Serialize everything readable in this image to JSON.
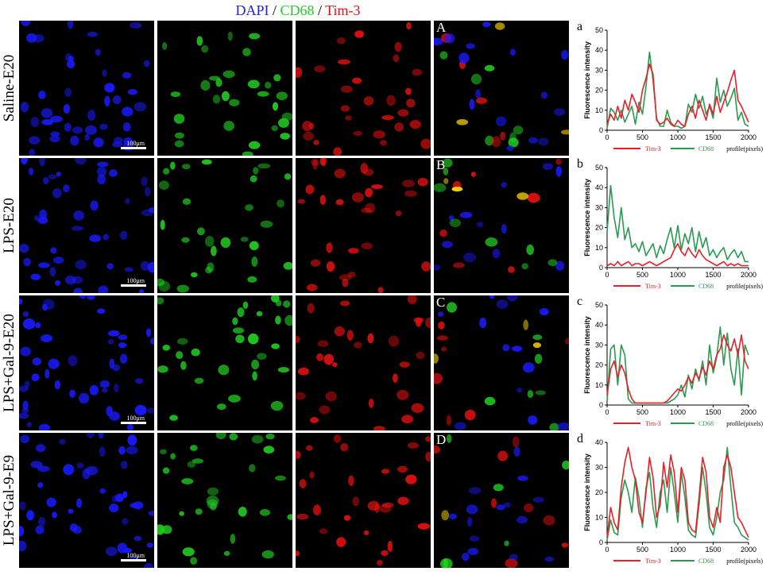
{
  "header": {
    "dapi": "DAPI",
    "sep1": " / ",
    "cd68": "CD68",
    "sep2": " / ",
    "tim3": "Tim-3"
  },
  "colors": {
    "dapi": "#1a1aff",
    "cd68": "#22cc22",
    "tim3": "#e01010",
    "tim3_line": "#e8202a",
    "cd68_line": "#2a9a50"
  },
  "rows": [
    {
      "label": "Saline-E20",
      "panel_letter": "A",
      "scale": "100μm",
      "sub": "a"
    },
    {
      "label": "LPS-E20",
      "panel_letter": "B",
      "scale": "100μm",
      "sub": "b"
    },
    {
      "label": "LPS+Gal-9-E20",
      "panel_letter": "C",
      "scale": "100μm",
      "sub": "c"
    },
    {
      "label": "LPS+Gal-9-E9",
      "panel_letter": "D",
      "scale": "100μm",
      "sub": "d"
    }
  ],
  "chart_data": [
    {
      "type": "line",
      "ylabel": "Fluorescence intensity",
      "xlabel": "profile(pixels)",
      "xlim": [
        0,
        2000
      ],
      "ylim": [
        0,
        50
      ],
      "xticks": [
        "0",
        "500",
        "1000",
        "1500",
        "2000"
      ],
      "yticks": [
        "0",
        "10",
        "20",
        "30",
        "40",
        "50"
      ],
      "series": [
        {
          "name": "Tim-3",
          "x": [
            0,
            50,
            100,
            150,
            200,
            250,
            300,
            350,
            400,
            450,
            500,
            550,
            600,
            650,
            700,
            750,
            800,
            850,
            900,
            950,
            1000,
            1050,
            1100,
            1150,
            1200,
            1250,
            1300,
            1350,
            1400,
            1450,
            1500,
            1550,
            1600,
            1650,
            1700,
            1750,
            1800,
            1850,
            1900,
            1950,
            2000
          ],
          "values": [
            3,
            8,
            5,
            12,
            6,
            15,
            10,
            18,
            14,
            9,
            20,
            26,
            33,
            28,
            5,
            3,
            4,
            6,
            3,
            2,
            5,
            3,
            2,
            8,
            12,
            6,
            15,
            10,
            5,
            13,
            8,
            17,
            9,
            14,
            19,
            25,
            30,
            15,
            12,
            8,
            4
          ]
        },
        {
          "name": "CD68",
          "x": [
            0,
            50,
            100,
            150,
            200,
            250,
            300,
            350,
            400,
            450,
            500,
            550,
            600,
            650,
            700,
            750,
            800,
            850,
            900,
            950,
            1000,
            1050,
            1100,
            1150,
            1200,
            1250,
            1300,
            1350,
            1400,
            1450,
            1500,
            1550,
            1600,
            1650,
            1700,
            1750,
            1800,
            1850,
            1900,
            1950,
            2000
          ],
          "values": [
            1,
            11,
            9,
            5,
            10,
            4,
            8,
            12,
            3,
            14,
            8,
            22,
            39,
            25,
            6,
            2,
            2,
            10,
            4,
            2,
            2,
            1,
            2,
            13,
            9,
            18,
            11,
            17,
            8,
            12,
            6,
            26,
            14,
            20,
            12,
            16,
            21,
            5,
            9,
            3,
            2
          ]
        }
      ]
    },
    {
      "type": "line",
      "ylabel": "Fluorescence intensity",
      "xlabel": "profile(pixels)",
      "xlim": [
        0,
        2000
      ],
      "ylim": [
        0,
        50
      ],
      "xticks": [
        "0",
        "500",
        "1000",
        "1500",
        "2000"
      ],
      "yticks": [
        "0",
        "10",
        "20",
        "30",
        "40",
        "50"
      ],
      "series": [
        {
          "name": "Tim-3",
          "x": [
            0,
            50,
            100,
            150,
            200,
            250,
            300,
            350,
            400,
            450,
            500,
            550,
            600,
            650,
            700,
            750,
            800,
            850,
            900,
            950,
            1000,
            1050,
            1100,
            1150,
            1200,
            1250,
            1300,
            1350,
            1400,
            1450,
            1500,
            1550,
            1600,
            1650,
            1700,
            1750,
            1800,
            1850,
            1900,
            1950,
            2000
          ],
          "values": [
            1,
            2,
            1,
            3,
            1,
            2,
            3,
            1,
            2,
            2,
            1,
            2,
            3,
            2,
            1,
            2,
            3,
            4,
            5,
            9,
            12,
            8,
            6,
            10,
            7,
            5,
            9,
            6,
            4,
            3,
            2,
            1,
            2,
            3,
            1,
            2,
            1,
            2,
            1,
            1,
            1
          ]
        },
        {
          "name": "CD68",
          "x": [
            0,
            50,
            100,
            150,
            200,
            250,
            300,
            350,
            400,
            450,
            500,
            550,
            600,
            650,
            700,
            750,
            800,
            850,
            900,
            950,
            1000,
            1050,
            1100,
            1150,
            1200,
            1250,
            1300,
            1350,
            1400,
            1450,
            1500,
            1550,
            1600,
            1650,
            1700,
            1750,
            1800,
            1850,
            1900,
            1950,
            2000
          ],
          "values": [
            18,
            41,
            25,
            15,
            30,
            14,
            20,
            10,
            12,
            8,
            13,
            6,
            9,
            12,
            5,
            11,
            7,
            14,
            20,
            10,
            21,
            9,
            17,
            12,
            20,
            8,
            18,
            10,
            15,
            6,
            9,
            5,
            8,
            10,
            4,
            7,
            9,
            5,
            8,
            3,
            3
          ]
        }
      ]
    },
    {
      "type": "line",
      "ylabel": "Fluorescence intensity",
      "xlabel": "profile(pixels)",
      "xlim": [
        0,
        2000
      ],
      "ylim": [
        0,
        50
      ],
      "xticks": [
        "0",
        "500",
        "1000",
        "1500",
        "2000"
      ],
      "yticks": [
        "0",
        "10",
        "20",
        "30",
        "40",
        "50"
      ],
      "series": [
        {
          "name": "Tim-3",
          "x": [
            0,
            50,
            100,
            150,
            200,
            250,
            300,
            350,
            400,
            450,
            500,
            550,
            600,
            650,
            700,
            750,
            800,
            850,
            900,
            950,
            1000,
            1050,
            1100,
            1150,
            1200,
            1250,
            1300,
            1350,
            1400,
            1450,
            1500,
            1550,
            1600,
            1650,
            1700,
            1750,
            1800,
            1850,
            1900,
            1950,
            2000
          ],
          "values": [
            5,
            18,
            22,
            14,
            20,
            16,
            8,
            3,
            1,
            1,
            1,
            1,
            1,
            1,
            1,
            1,
            1,
            2,
            4,
            6,
            8,
            7,
            10,
            14,
            11,
            16,
            13,
            19,
            15,
            22,
            18,
            25,
            28,
            35,
            30,
            27,
            33,
            25,
            35,
            22,
            18
          ]
        },
        {
          "name": "CD68",
          "x": [
            0,
            50,
            100,
            150,
            200,
            250,
            300,
            350,
            400,
            450,
            500,
            550,
            600,
            650,
            700,
            750,
            800,
            850,
            900,
            950,
            1000,
            1050,
            1100,
            1150,
            1200,
            1250,
            1300,
            1350,
            1400,
            1450,
            1500,
            1550,
            1600,
            1650,
            1700,
            1750,
            1800,
            1850,
            1900,
            1950,
            2000
          ],
          "values": [
            2,
            28,
            30,
            10,
            30,
            25,
            3,
            1,
            1,
            1,
            1,
            1,
            1,
            1,
            1,
            1,
            1,
            1,
            2,
            3,
            5,
            10,
            4,
            15,
            8,
            18,
            12,
            22,
            10,
            30,
            16,
            24,
            39,
            20,
            36,
            18,
            10,
            28,
            5,
            30,
            25
          ]
        }
      ]
    },
    {
      "type": "line",
      "ylabel": "Fluorescence intensity",
      "xlabel": "profile(pixels)",
      "xlim": [
        0,
        2000
      ],
      "ylim": [
        0,
        40
      ],
      "xticks": [
        "0",
        "500",
        "1000",
        "1500",
        "2000"
      ],
      "yticks": [
        "0",
        "10",
        "20",
        "30",
        "40"
      ],
      "series": [
        {
          "name": "Tim-3",
          "x": [
            0,
            50,
            100,
            150,
            200,
            250,
            300,
            350,
            400,
            450,
            500,
            550,
            600,
            650,
            700,
            750,
            800,
            850,
            900,
            950,
            1000,
            1050,
            1100,
            1150,
            1200,
            1250,
            1300,
            1350,
            1400,
            1450,
            1500,
            1550,
            1600,
            1650,
            1700,
            1750,
            1800,
            1850,
            1900,
            1950,
            2000
          ],
          "values": [
            2,
            14,
            8,
            5,
            22,
            32,
            38,
            30,
            25,
            12,
            8,
            20,
            34,
            26,
            10,
            15,
            32,
            22,
            35,
            28,
            12,
            30,
            25,
            8,
            5,
            4,
            18,
            34,
            28,
            10,
            6,
            14,
            8,
            30,
            35,
            30,
            20,
            10,
            8,
            5,
            2
          ]
        },
        {
          "name": "CD68",
          "x": [
            0,
            50,
            100,
            150,
            200,
            250,
            300,
            350,
            400,
            450,
            500,
            550,
            600,
            650,
            700,
            750,
            800,
            850,
            900,
            950,
            1000,
            1050,
            1100,
            1150,
            1200,
            1250,
            1300,
            1350,
            1400,
            1450,
            1500,
            1550,
            1600,
            1650,
            1700,
            1750,
            1800,
            1850,
            1900,
            1950,
            2000
          ],
          "values": [
            1,
            9,
            4,
            3,
            18,
            25,
            20,
            12,
            26,
            18,
            6,
            22,
            28,
            14,
            6,
            20,
            25,
            12,
            30,
            20,
            8,
            28,
            18,
            5,
            3,
            2,
            15,
            30,
            20,
            6,
            3,
            10,
            20,
            25,
            38,
            22,
            8,
            6,
            3,
            2,
            1
          ]
        }
      ]
    }
  ]
}
